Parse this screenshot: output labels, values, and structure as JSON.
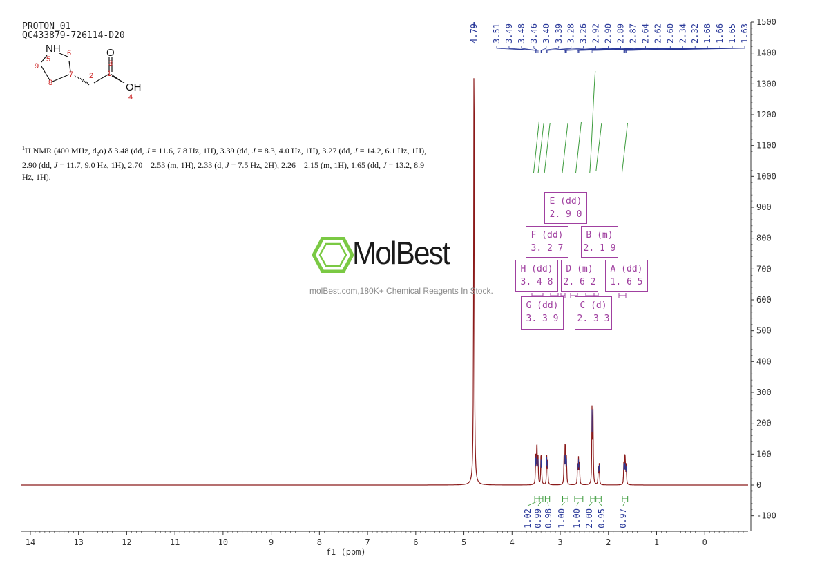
{
  "header": {
    "experiment": "PROTON_01",
    "sample_id": "QC433879-726114-D20"
  },
  "structure": {
    "atoms": [
      {
        "label": "NH",
        "index": "5"
      },
      {
        "label": "",
        "index": "6"
      },
      {
        "label": "",
        "index": "7"
      },
      {
        "label": "",
        "index": "8"
      },
      {
        "label": "",
        "index": "9"
      },
      {
        "label": "",
        "index": "2"
      },
      {
        "label": "",
        "index": "1"
      },
      {
        "label": "O",
        "index": "3"
      },
      {
        "label": "OH",
        "index": "4"
      }
    ],
    "colors": {
      "index": "#cc2222",
      "bond": "#111111"
    }
  },
  "description": {
    "nucleus_sup": "1",
    "nucleus": "H NMR (400 MHz, d",
    "solvent_sub": "2",
    "solvent_tail": "o) δ 3.48 (dd, ",
    "line_full": "(dd, J = 11.6, 7.8 Hz, 1H), 3.39 (dd, J = 8.3, 4.0 Hz, 1H), 3.27 (dd, J = 14.2, 6.1 Hz, 1H), 2.90 (dd, J = 11.7, 9.0 Hz, 1H), 2.70 – 2.53 (m, 1H), 2.33 (d, J = 7.5 Hz, 2H), 2.26 – 2.15 (m, 1H), 1.65 (dd, J = 13.2, 8.9 Hz, 1H)."
  },
  "watermark": {
    "brand": "MolBest",
    "tagline": "molBest.com,180K+ Chemical Reagents In Stock."
  },
  "chart_data": {
    "type": "line",
    "xlabel": "f1 (ppm)",
    "xlim": [
      14.2,
      -0.9
    ],
    "ylim": [
      -150,
      1500
    ],
    "x_reversed": true,
    "x_ticks": [
      14,
      13,
      12,
      11,
      10,
      9,
      8,
      7,
      6,
      5,
      4,
      3,
      2,
      1,
      0
    ],
    "y_ticks": [
      -100,
      0,
      100,
      200,
      300,
      400,
      500,
      600,
      700,
      800,
      900,
      1000,
      1100,
      1200,
      1300,
      1400,
      1500
    ],
    "solvent_peak": {
      "ppm": 4.79,
      "height": 1500,
      "label": "4.79"
    },
    "peak_labels": [
      "3.51",
      "3.49",
      "3.48",
      "3.46",
      "3.40",
      "3.39",
      "3.28",
      "3.26",
      "2.92",
      "2.90",
      "2.89",
      "2.87",
      "2.64",
      "2.62",
      "2.60",
      "2.34",
      "2.32",
      "1.68",
      "1.66",
      "1.65",
      "1.63"
    ],
    "peaks": [
      {
        "ppm": 3.51,
        "height": 88
      },
      {
        "ppm": 3.49,
        "height": 95
      },
      {
        "ppm": 3.48,
        "height": 92
      },
      {
        "ppm": 3.46,
        "height": 85
      },
      {
        "ppm": 3.4,
        "height": 82
      },
      {
        "ppm": 3.39,
        "height": 80
      },
      {
        "ppm": 3.28,
        "height": 90
      },
      {
        "ppm": 3.26,
        "height": 78
      },
      {
        "ppm": 2.92,
        "height": 90
      },
      {
        "ppm": 2.9,
        "height": 98
      },
      {
        "ppm": 2.89,
        "height": 96
      },
      {
        "ppm": 2.87,
        "height": 86
      },
      {
        "ppm": 2.64,
        "height": 70
      },
      {
        "ppm": 2.62,
        "height": 82
      },
      {
        "ppm": 2.6,
        "height": 68
      },
      {
        "ppm": 2.34,
        "height": 245
      },
      {
        "ppm": 2.32,
        "height": 230
      },
      {
        "ppm": 2.21,
        "height": 60
      },
      {
        "ppm": 2.19,
        "height": 65
      },
      {
        "ppm": 1.68,
        "height": 68
      },
      {
        "ppm": 1.66,
        "height": 72
      },
      {
        "ppm": 1.65,
        "height": 70
      },
      {
        "ppm": 1.63,
        "height": 62
      }
    ],
    "integrals": [
      {
        "value": "1.02",
        "from": 3.53,
        "to": 3.44
      },
      {
        "value": "0.99",
        "from": 3.43,
        "to": 3.36
      },
      {
        "value": "0.98",
        "from": 3.31,
        "to": 3.22
      },
      {
        "value": "1.00",
        "from": 2.95,
        "to": 2.84
      },
      {
        "value": "1.00",
        "from": 2.7,
        "to": 2.53
      },
      {
        "value": "2.00",
        "from": 2.37,
        "to": 2.28
      },
      {
        "value": "0.95",
        "from": 2.26,
        "to": 2.15
      },
      {
        "value": "0.97",
        "from": 1.71,
        "to": 1.6
      }
    ],
    "multiplets": [
      {
        "id": "E",
        "type": "(dd)",
        "shift": "2.90"
      },
      {
        "id": "F",
        "type": "(dd)",
        "shift": "3.27"
      },
      {
        "id": "B",
        "type": "(m)",
        "shift": "2.19"
      },
      {
        "id": "H",
        "type": "(dd)",
        "shift": "3.48"
      },
      {
        "id": "D",
        "type": "(m)",
        "shift": "2.62"
      },
      {
        "id": "A",
        "type": "(dd)",
        "shift": "1.65"
      },
      {
        "id": "G",
        "type": "(dd)",
        "shift": "3.39"
      },
      {
        "id": "C",
        "type": "(d)",
        "shift": "2.33"
      }
    ],
    "colors": {
      "spectrum": "#8b1a1a",
      "peak_tips": "#2b3a9a",
      "peak_labels": "#2b3a9a",
      "integrals": "#3a9a3a",
      "multiplet_box": "#a040a0",
      "axis": "#333333"
    }
  }
}
